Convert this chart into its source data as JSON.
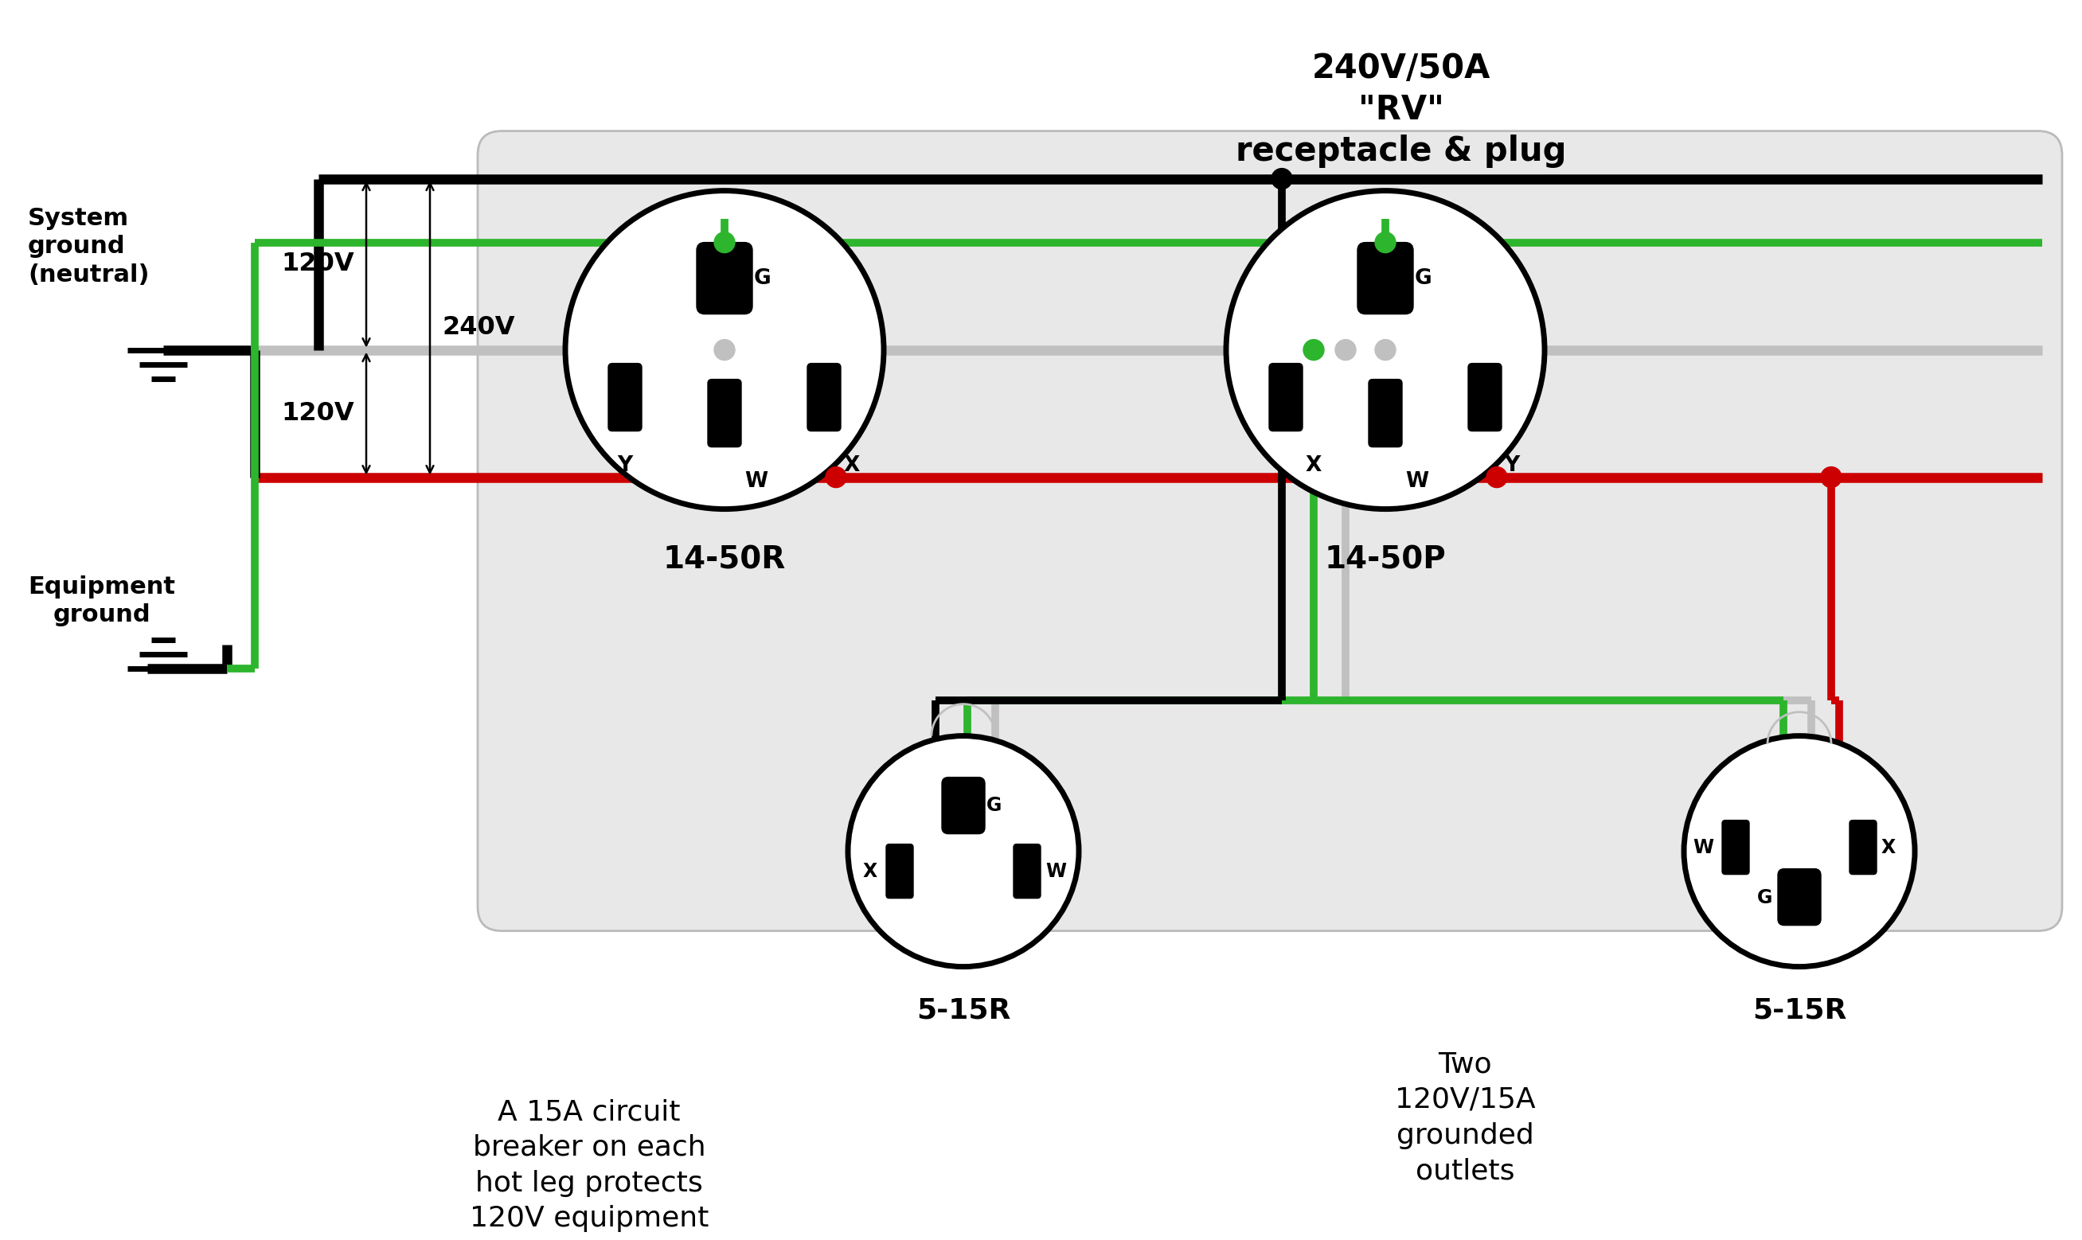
{
  "bg_color": "#ffffff",
  "panel_bg": "#e8e8e8",
  "BK": "#000000",
  "RD": "#cc0000",
  "GR": "#2db52d",
  "GY": "#c0c0c0",
  "label_14_50R": "14-50R",
  "label_14_50P": "14-50P",
  "label_5_15R": "5-15R",
  "top_label": "240V/50A\n\"RV\"\nreceptacle & plug",
  "bottom_label_left": "A 15A circuit\nbreaker on each\nhot leg protects\n120V equipment",
  "bottom_label_right": "Two\n120V/15A\ngrounded\noutlets",
  "system_ground_label": "System\nground\n(neutral)",
  "equipment_ground_label": "Equipment\nground",
  "v120_1": "120V",
  "v120_2": "120V",
  "v240": "240V",
  "wire_lw": 7,
  "outlet_lw": 5
}
